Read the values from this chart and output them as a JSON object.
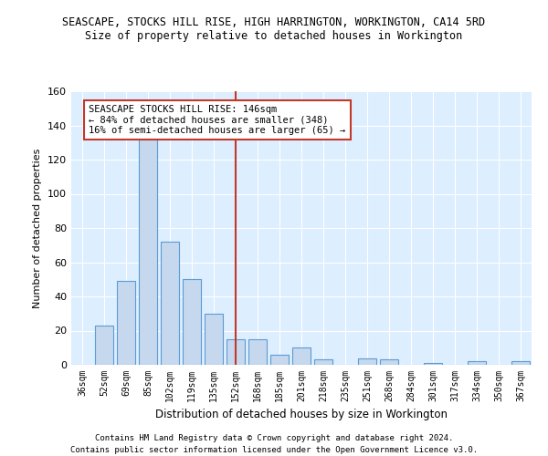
{
  "title": "SEASCAPE, STOCKS HILL RISE, HIGH HARRINGTON, WORKINGTON, CA14 5RD",
  "subtitle": "Size of property relative to detached houses in Workington",
  "xlabel": "Distribution of detached houses by size in Workington",
  "ylabel": "Number of detached properties",
  "bar_color": "#c5d8ed",
  "bar_edge_color": "#5b9bd5",
  "categories": [
    "36sqm",
    "52sqm",
    "69sqm",
    "85sqm",
    "102sqm",
    "119sqm",
    "135sqm",
    "152sqm",
    "168sqm",
    "185sqm",
    "201sqm",
    "218sqm",
    "235sqm",
    "251sqm",
    "268sqm",
    "284sqm",
    "301sqm",
    "317sqm",
    "334sqm",
    "350sqm",
    "367sqm"
  ],
  "values": [
    0,
    23,
    49,
    133,
    72,
    50,
    30,
    15,
    15,
    6,
    10,
    3,
    0,
    4,
    3,
    0,
    1,
    0,
    2,
    0,
    2
  ],
  "ylim": [
    0,
    160
  ],
  "yticks": [
    0,
    20,
    40,
    60,
    80,
    100,
    120,
    140,
    160
  ],
  "vline_x_index": 7,
  "vline_color": "#c0392b",
  "annotation_text": "SEASCAPE STOCKS HILL RISE: 146sqm\n← 84% of detached houses are smaller (348)\n16% of semi-detached houses are larger (65) →",
  "annotation_box_color": "#ffffff",
  "annotation_box_edge": "#c0392b",
  "footnote1": "Contains HM Land Registry data © Crown copyright and database right 2024.",
  "footnote2": "Contains public sector information licensed under the Open Government Licence v3.0.",
  "background_color": "#ddeeff",
  "grid_color": "#ffffff",
  "fig_bg": "#ffffff"
}
